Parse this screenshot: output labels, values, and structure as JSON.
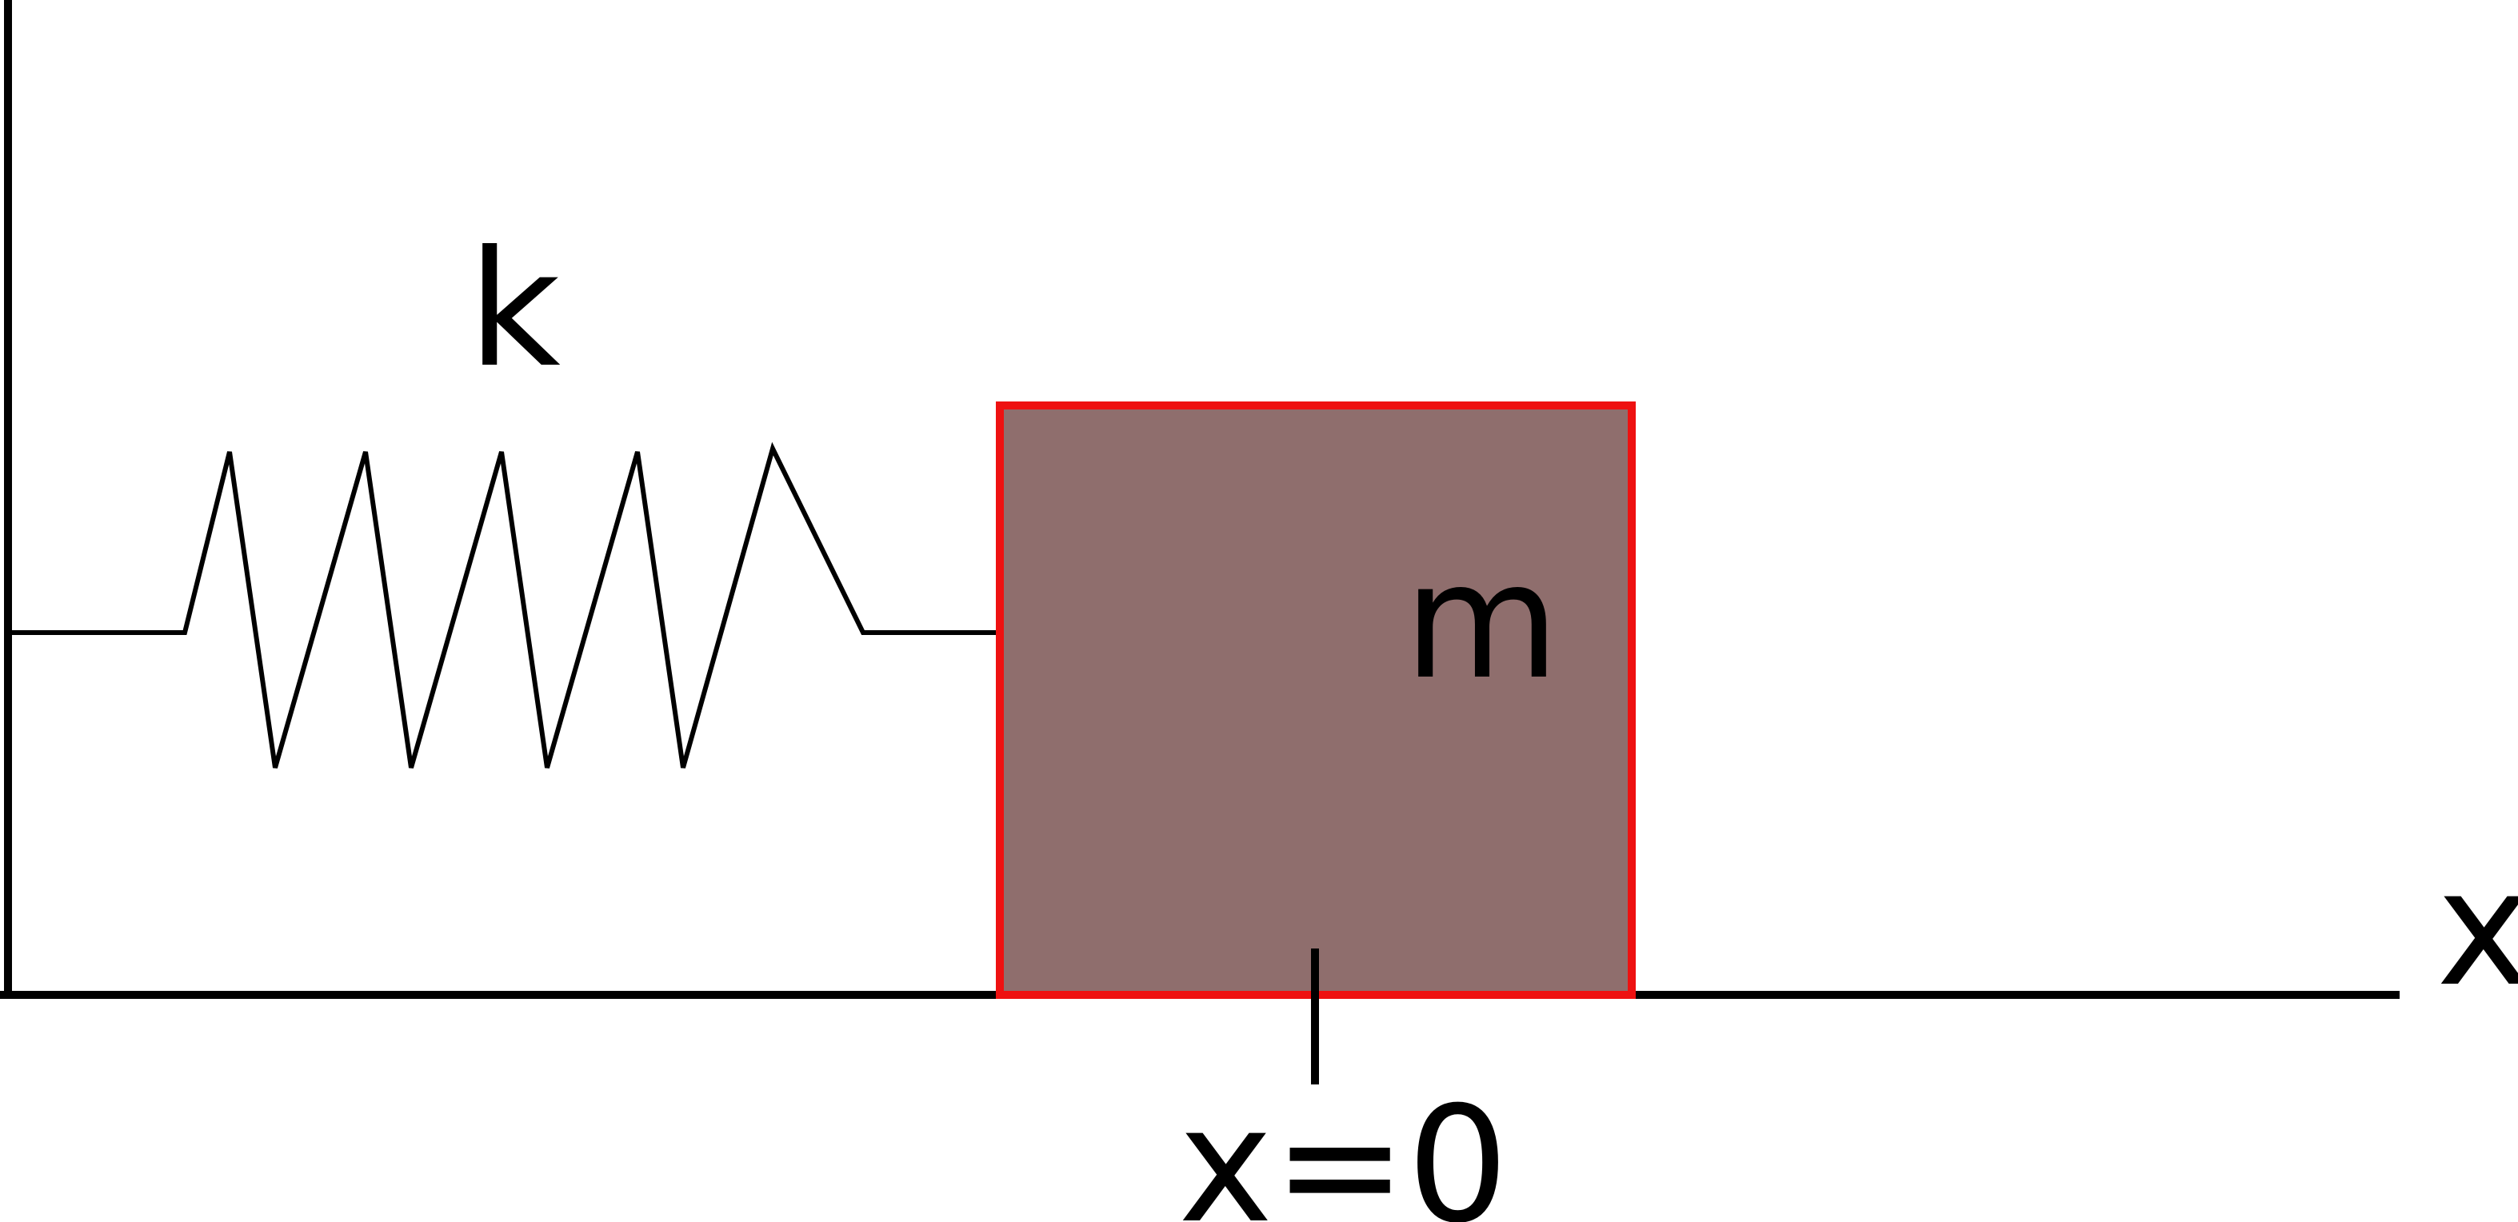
{
  "labels": {
    "spring_constant": "k",
    "mass": "m",
    "axis": "x",
    "origin": "x=0"
  },
  "colors": {
    "mass_fill": "#8f6e6d",
    "mass_outline": "#ee1111",
    "lines": "#000000",
    "background": "#ffffff"
  }
}
